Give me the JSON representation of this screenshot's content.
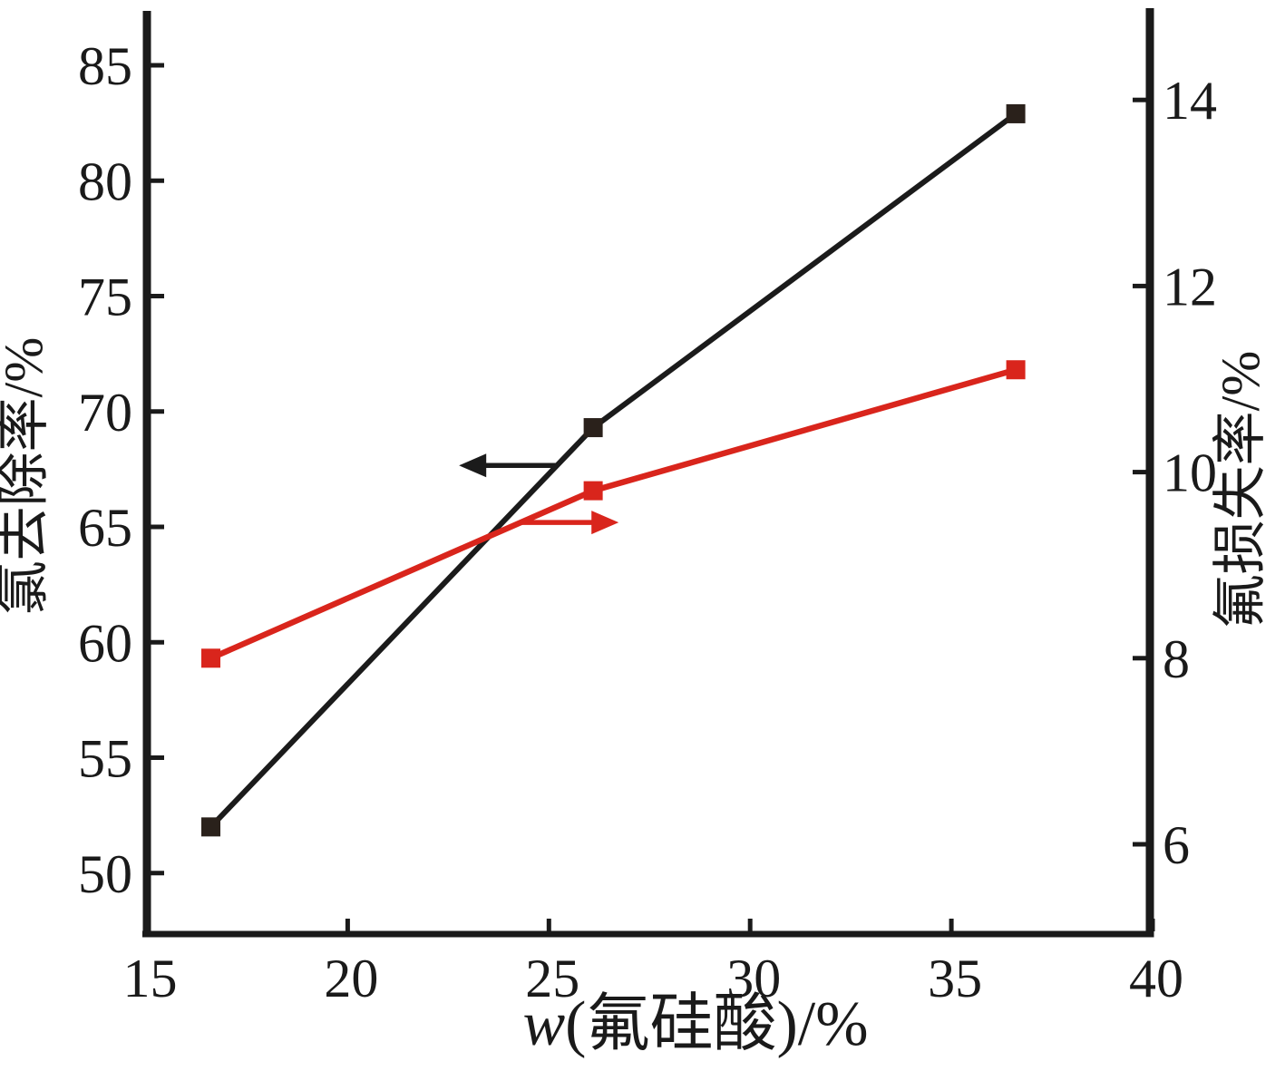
{
  "chart_data": {
    "type": "line",
    "title": "",
    "xlabel": "w(氟硅酸)/%",
    "xlabel_italic_prefix": "w",
    "x_ticks": [
      15,
      20,
      25,
      30,
      35,
      40
    ],
    "x_range": [
      15,
      40
    ],
    "x": [
      16.6,
      26.1,
      36.6
    ],
    "series": [
      {
        "name": "氯去除率",
        "axis": "left",
        "color": "#1b1b1b",
        "marker": "square",
        "marker_color": "#2a211b",
        "values": [
          52.0,
          69.3,
          82.9
        ]
      },
      {
        "name": "氟损失率",
        "axis": "right",
        "color": "#d9251c",
        "marker": "square",
        "marker_color": "#d9251c",
        "values": [
          8.0,
          9.8,
          11.1
        ]
      }
    ],
    "left_axis": {
      "label": "氯去除率/%",
      "ticks": [
        50,
        55,
        60,
        65,
        70,
        75,
        80,
        85
      ]
    },
    "right_axis": {
      "label": "氟损失率/%",
      "ticks": [
        6,
        8,
        10,
        12,
        14
      ]
    },
    "annotations": [
      {
        "type": "arrow",
        "series": "氯去除率",
        "direction": "left",
        "at_x": 25.2,
        "color": "#1b1b1b"
      },
      {
        "type": "arrow",
        "series": "氟损失率",
        "direction": "right",
        "at_x": 24.3,
        "color": "#d9251c"
      }
    ],
    "grid": false,
    "legend": "none"
  }
}
